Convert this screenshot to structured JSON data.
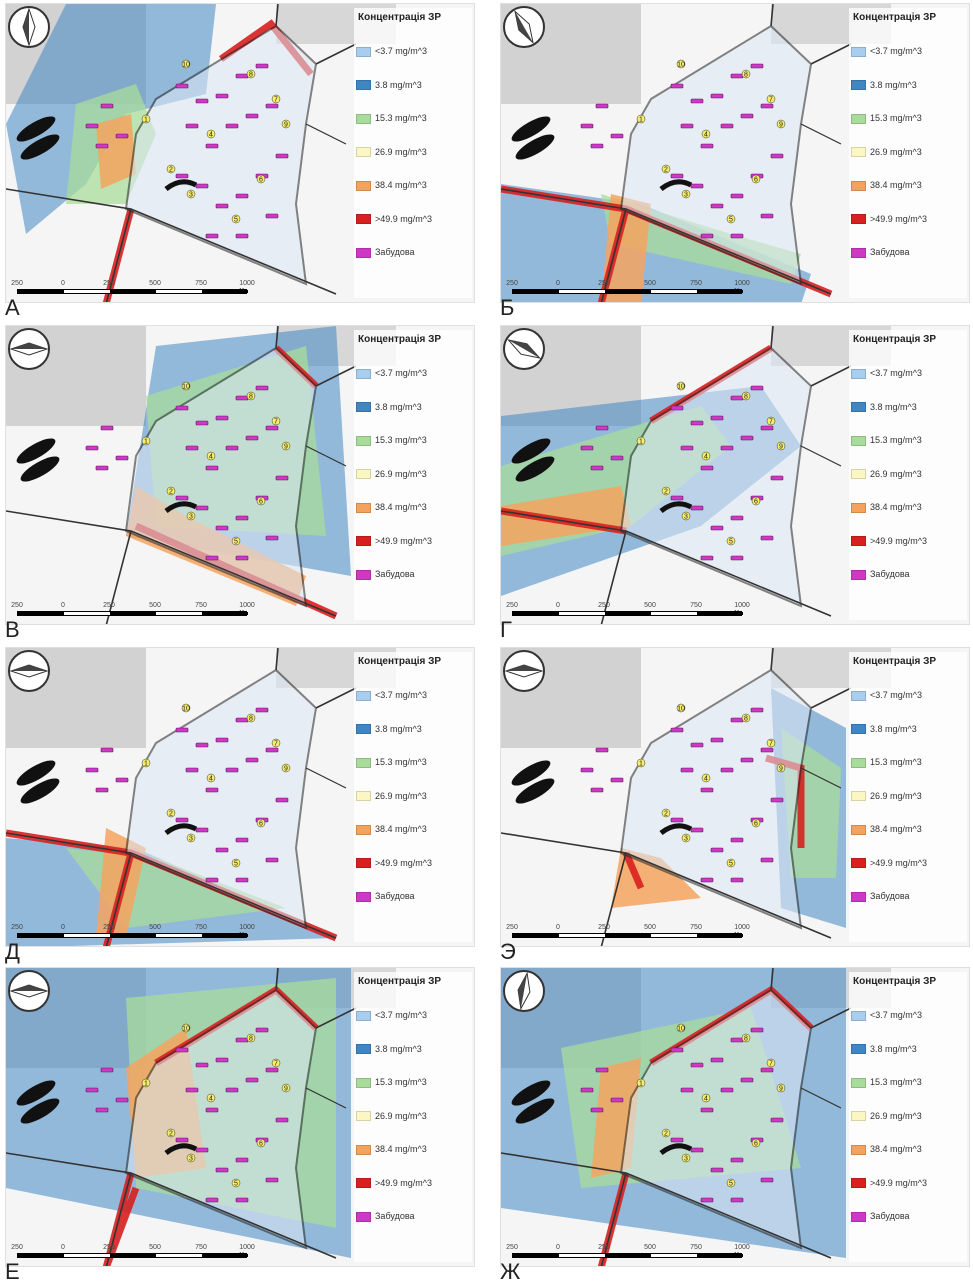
{
  "legend": {
    "title": "Концентрація ЗР",
    "items": [
      {
        "label": "<3.7 mg/m^3",
        "color": "#a9cdee"
      },
      {
        "label": "3.8 mg/m^3",
        "color": "#3f86c3"
      },
      {
        "label": "15.3 mg/m^3",
        "color": "#a8dc9a"
      },
      {
        "label": "26.9 mg/m^3",
        "color": "#fbf7c4"
      },
      {
        "label": "38.4 mg/m^3",
        "color": "#f4a35f"
      },
      {
        "label": ">49.9 mg/m^3",
        "color": "#d7201f"
      },
      {
        "label": "Забудова",
        "color": "#cf38c4"
      }
    ]
  },
  "scale": {
    "ticks": [
      "250",
      "0",
      "250",
      "500",
      "750",
      "1000 м"
    ]
  },
  "panels": [
    {
      "letter": "А",
      "markers": [
        "1",
        "2",
        "3",
        "4",
        "5",
        "6",
        "7",
        "8",
        "9",
        "10"
      ]
    },
    {
      "letter": "Б",
      "markers": [
        "1",
        "2",
        "3",
        "4",
        "5",
        "6",
        "7",
        "8",
        "9",
        "10"
      ]
    },
    {
      "letter": "В",
      "markers": [
        "1",
        "2",
        "3",
        "4",
        "5",
        "6",
        "7",
        "8",
        "9",
        "10"
      ]
    },
    {
      "letter": "Г",
      "markers": [
        "1",
        "2",
        "3",
        "4",
        "5",
        "6",
        "7",
        "8",
        "9",
        "10"
      ]
    },
    {
      "letter": "Д",
      "markers": [
        "1",
        "2",
        "3",
        "4",
        "5",
        "6",
        "7",
        "8",
        "9",
        "10"
      ]
    },
    {
      "letter": "Э",
      "markers": [
        "1",
        "2",
        "3",
        "4",
        "5",
        "6",
        "7",
        "8",
        "9",
        "10"
      ]
    },
    {
      "letter": "Е",
      "markers": [
        "1",
        "2",
        "3",
        "4",
        "5",
        "6",
        "7",
        "8",
        "9",
        "10"
      ]
    },
    {
      "letter": "Ж",
      "markers": [
        "1",
        "2",
        "3",
        "4",
        "5",
        "6",
        "7",
        "8",
        "9",
        "10"
      ]
    }
  ]
}
